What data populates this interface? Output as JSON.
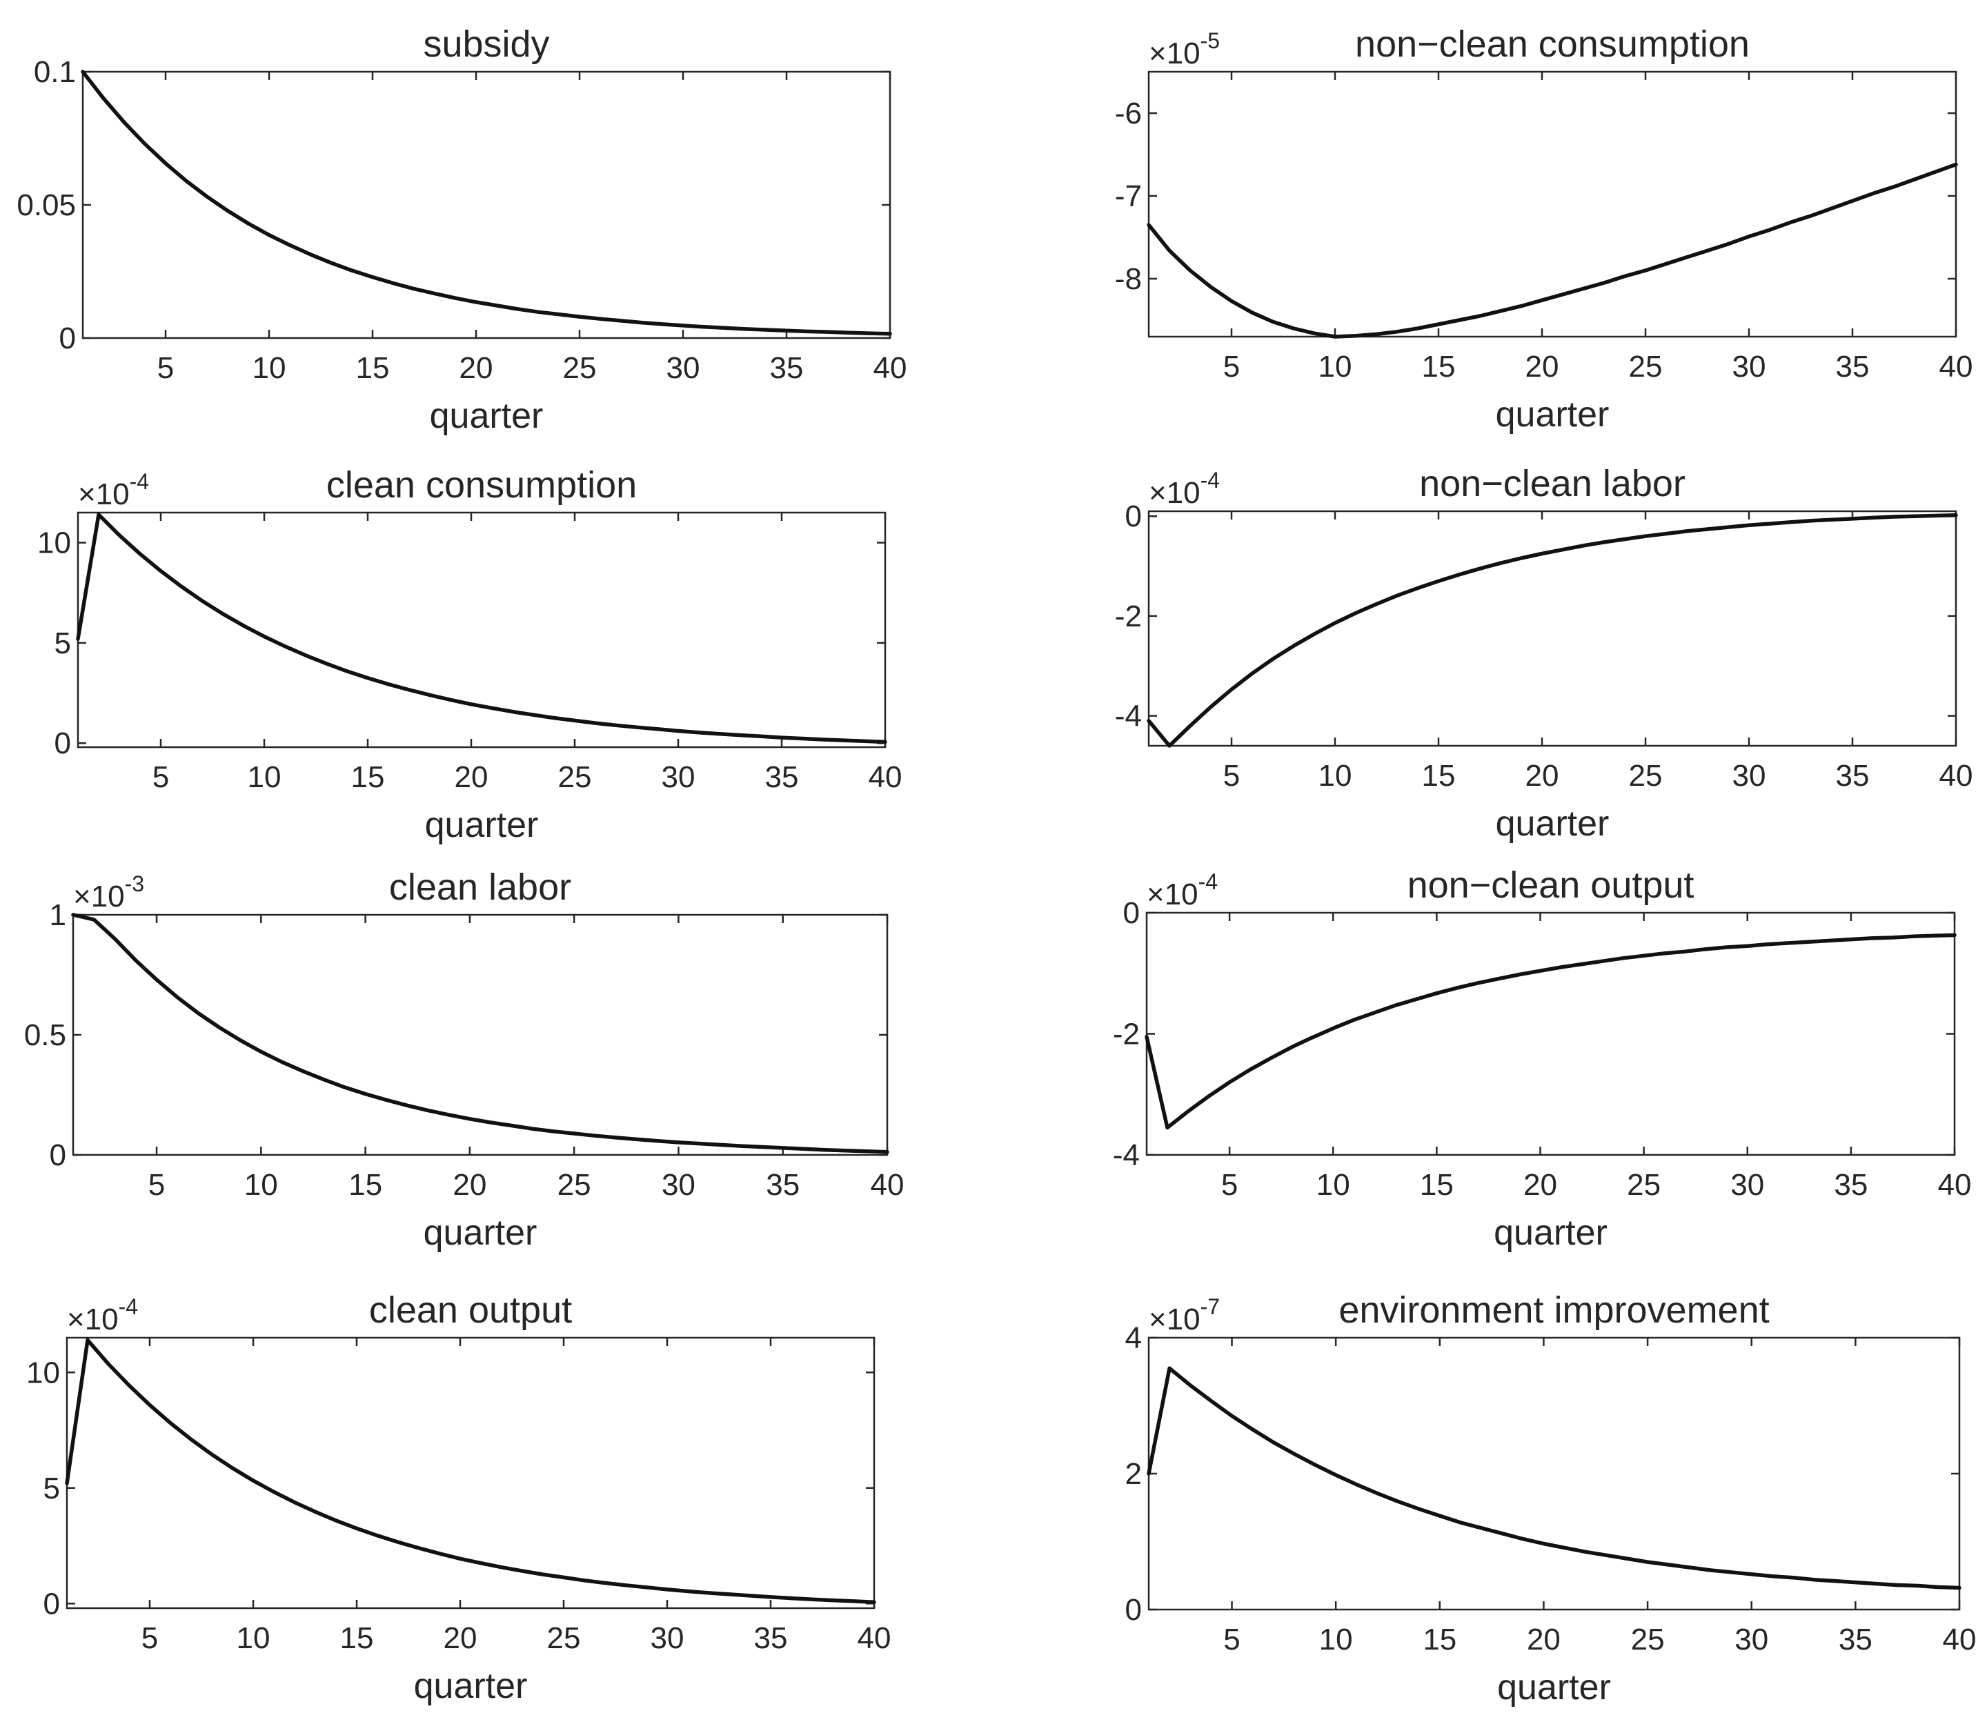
{
  "figure": {
    "background": "#ffffff",
    "line_color": "#111111"
  },
  "chart_data": [
    {
      "type": "line",
      "title": "subsidy",
      "xlabel": "quarter",
      "ylabel": "",
      "multiplier": "",
      "xlim": [
        1,
        40
      ],
      "ylim": [
        0,
        0.1
      ],
      "xticks": [
        5,
        10,
        15,
        20,
        25,
        30,
        35,
        40
      ],
      "yticks": [
        0,
        0.05,
        0.1
      ],
      "ytick_labels": [
        "0",
        "0.05",
        "0.1"
      ],
      "x": [
        1,
        2,
        3,
        4,
        5,
        6,
        7,
        8,
        9,
        10,
        11,
        12,
        13,
        14,
        15,
        16,
        17,
        18,
        19,
        20,
        21,
        22,
        23,
        24,
        25,
        26,
        27,
        28,
        29,
        30,
        31,
        32,
        33,
        34,
        35,
        36,
        37,
        38,
        39,
        40
      ],
      "values": [
        0.1,
        0.09,
        0.081,
        0.0729,
        0.0656,
        0.059,
        0.0531,
        0.0478,
        0.043,
        0.0387,
        0.0349,
        0.0314,
        0.0282,
        0.0254,
        0.0229,
        0.0206,
        0.0185,
        0.0167,
        0.015,
        0.0135,
        0.0122,
        0.0109,
        0.0098,
        0.0089,
        0.008,
        0.0072,
        0.0065,
        0.0058,
        0.0052,
        0.0047,
        0.0042,
        0.0038,
        0.0034,
        0.0031,
        0.0028,
        0.0025,
        0.0023,
        0.002,
        0.0018,
        0.0016
      ]
    },
    {
      "type": "line",
      "title": "clean consumption",
      "xlabel": "quarter",
      "ylabel": "",
      "multiplier": "×10",
      "exponent": "-4",
      "xlim": [
        1,
        40
      ],
      "ylim": [
        -0.2,
        11.5
      ],
      "xticks": [
        5,
        10,
        15,
        20,
        25,
        30,
        35,
        40
      ],
      "yticks": [
        0,
        5,
        10
      ],
      "ytick_labels": [
        "0",
        "5",
        "10"
      ],
      "x": [
        1,
        2,
        3,
        4,
        5,
        6,
        7,
        8,
        9,
        10,
        11,
        12,
        13,
        14,
        15,
        16,
        17,
        18,
        19,
        20,
        21,
        22,
        23,
        24,
        25,
        26,
        27,
        28,
        29,
        30,
        31,
        32,
        33,
        34,
        35,
        36,
        37,
        38,
        39,
        40
      ],
      "values": [
        5.2,
        11.4,
        10.37,
        9.44,
        8.59,
        7.81,
        7.1,
        6.45,
        5.86,
        5.32,
        4.83,
        4.38,
        3.97,
        3.59,
        3.25,
        2.94,
        2.66,
        2.4,
        2.16,
        1.94,
        1.75,
        1.57,
        1.41,
        1.26,
        1.13,
        1.0,
        0.89,
        0.79,
        0.7,
        0.61,
        0.53,
        0.46,
        0.4,
        0.34,
        0.28,
        0.23,
        0.18,
        0.14,
        0.1,
        0.06
      ]
    },
    {
      "type": "line",
      "title": "clean labor",
      "xlabel": "quarter",
      "ylabel": "",
      "multiplier": "×10",
      "exponent": "-3",
      "xlim": [
        1,
        40
      ],
      "ylim": [
        0,
        1
      ],
      "xticks": [
        5,
        10,
        15,
        20,
        25,
        30,
        35,
        40
      ],
      "yticks": [
        0,
        0.5,
        1
      ],
      "ytick_labels": [
        "0",
        "0.5",
        "1"
      ],
      "x": [
        1,
        2,
        3,
        4,
        5,
        6,
        7,
        8,
        9,
        10,
        11,
        12,
        13,
        14,
        15,
        16,
        17,
        18,
        19,
        20,
        21,
        22,
        23,
        24,
        25,
        26,
        27,
        28,
        29,
        30,
        31,
        32,
        33,
        34,
        35,
        36,
        37,
        38,
        39,
        40
      ],
      "values": [
        1.0,
        0.98,
        0.9,
        0.81,
        0.73,
        0.656,
        0.59,
        0.531,
        0.478,
        0.43,
        0.387,
        0.349,
        0.314,
        0.282,
        0.254,
        0.229,
        0.206,
        0.185,
        0.167,
        0.15,
        0.135,
        0.122,
        0.109,
        0.098,
        0.089,
        0.08,
        0.072,
        0.065,
        0.058,
        0.052,
        0.047,
        0.042,
        0.037,
        0.033,
        0.029,
        0.025,
        0.021,
        0.018,
        0.015,
        0.012
      ]
    },
    {
      "type": "line",
      "title": "clean output",
      "xlabel": "quarter",
      "ylabel": "",
      "multiplier": "×10",
      "exponent": "-4",
      "xlim": [
        1,
        40
      ],
      "ylim": [
        -0.2,
        11.5
      ],
      "xticks": [
        5,
        10,
        15,
        20,
        25,
        30,
        35,
        40
      ],
      "yticks": [
        0,
        5,
        10
      ],
      "ytick_labels": [
        "0",
        "5",
        "10"
      ],
      "x": [
        1,
        2,
        3,
        4,
        5,
        6,
        7,
        8,
        9,
        10,
        11,
        12,
        13,
        14,
        15,
        16,
        17,
        18,
        19,
        20,
        21,
        22,
        23,
        24,
        25,
        26,
        27,
        28,
        29,
        30,
        31,
        32,
        33,
        34,
        35,
        36,
        37,
        38,
        39,
        40
      ],
      "values": [
        5.2,
        11.4,
        10.37,
        9.44,
        8.59,
        7.81,
        7.1,
        6.45,
        5.86,
        5.32,
        4.83,
        4.38,
        3.97,
        3.59,
        3.25,
        2.94,
        2.66,
        2.4,
        2.16,
        1.94,
        1.75,
        1.57,
        1.41,
        1.26,
        1.13,
        1.0,
        0.89,
        0.79,
        0.7,
        0.61,
        0.53,
        0.46,
        0.4,
        0.34,
        0.28,
        0.23,
        0.18,
        0.14,
        0.1,
        0.06
      ]
    },
    {
      "type": "line",
      "title": "non−clean consumption",
      "xlabel": "quarter",
      "ylabel": "",
      "multiplier": "×10",
      "exponent": "-5",
      "xlim": [
        1,
        40
      ],
      "ylim": [
        -8.7,
        -5.5
      ],
      "xticks": [
        5,
        10,
        15,
        20,
        25,
        30,
        35,
        40
      ],
      "yticks": [
        -8,
        -7,
        -6
      ],
      "ytick_labels": [
        "-8",
        "-7",
        "-6"
      ],
      "x": [
        1,
        2,
        3,
        4,
        5,
        6,
        7,
        8,
        9,
        10,
        11,
        12,
        13,
        14,
        15,
        16,
        17,
        18,
        19,
        20,
        21,
        22,
        23,
        24,
        25,
        26,
        27,
        28,
        29,
        30,
        31,
        32,
        33,
        34,
        35,
        36,
        37,
        38,
        39,
        40
      ],
      "values": [
        -7.35,
        -7.66,
        -7.9,
        -8.1,
        -8.27,
        -8.41,
        -8.52,
        -8.6,
        -8.66,
        -8.7,
        -8.69,
        -8.67,
        -8.64,
        -8.6,
        -8.55,
        -8.5,
        -8.45,
        -8.39,
        -8.33,
        -8.26,
        -8.19,
        -8.12,
        -8.05,
        -7.97,
        -7.9,
        -7.82,
        -7.74,
        -7.66,
        -7.58,
        -7.49,
        -7.41,
        -7.32,
        -7.24,
        -7.15,
        -7.06,
        -6.97,
        -6.89,
        -6.8,
        -6.71,
        -6.62
      ]
    },
    {
      "type": "line",
      "title": "non−clean labor",
      "xlabel": "quarter",
      "ylabel": "",
      "multiplier": "×10",
      "exponent": "-4",
      "xlim": [
        1,
        40
      ],
      "ylim": [
        -4.6,
        0.1
      ],
      "xticks": [
        5,
        10,
        15,
        20,
        25,
        30,
        35,
        40
      ],
      "yticks": [
        -4,
        -2,
        0
      ],
      "ytick_labels": [
        "-4",
        "-2",
        "0"
      ],
      "x": [
        1,
        2,
        3,
        4,
        5,
        6,
        7,
        8,
        9,
        10,
        11,
        12,
        13,
        14,
        15,
        16,
        17,
        18,
        19,
        20,
        21,
        22,
        23,
        24,
        25,
        26,
        27,
        28,
        29,
        30,
        31,
        32,
        33,
        34,
        35,
        36,
        37,
        38,
        39,
        40
      ],
      "values": [
        -4.1,
        -4.6,
        -4.2,
        -3.82,
        -3.47,
        -3.15,
        -2.86,
        -2.6,
        -2.36,
        -2.14,
        -1.94,
        -1.76,
        -1.59,
        -1.44,
        -1.3,
        -1.17,
        -1.05,
        -0.94,
        -0.84,
        -0.75,
        -0.67,
        -0.59,
        -0.52,
        -0.46,
        -0.4,
        -0.35,
        -0.3,
        -0.26,
        -0.22,
        -0.18,
        -0.15,
        -0.12,
        -0.09,
        -0.07,
        -0.05,
        -0.03,
        -0.01,
        0.0,
        0.01,
        0.02
      ]
    },
    {
      "type": "line",
      "title": "non−clean output",
      "xlabel": "quarter",
      "ylabel": "",
      "multiplier": "×10",
      "exponent": "-4",
      "xlim": [
        1,
        40
      ],
      "ylim": [
        -4,
        0
      ],
      "xticks": [
        5,
        10,
        15,
        20,
        25,
        30,
        35,
        40
      ],
      "yticks": [
        -4,
        -2,
        0
      ],
      "ytick_labels": [
        "-4",
        "-2",
        "0"
      ],
      "x": [
        1,
        2,
        3,
        4,
        5,
        6,
        7,
        8,
        9,
        10,
        11,
        12,
        13,
        14,
        15,
        16,
        17,
        18,
        19,
        20,
        21,
        22,
        23,
        24,
        25,
        26,
        27,
        28,
        29,
        30,
        31,
        32,
        33,
        34,
        35,
        36,
        37,
        38,
        39,
        40
      ],
      "values": [
        -2.05,
        -3.55,
        -3.28,
        -3.03,
        -2.8,
        -2.59,
        -2.4,
        -2.22,
        -2.06,
        -1.91,
        -1.77,
        -1.65,
        -1.53,
        -1.43,
        -1.33,
        -1.24,
        -1.16,
        -1.09,
        -1.02,
        -0.96,
        -0.9,
        -0.85,
        -0.8,
        -0.75,
        -0.71,
        -0.67,
        -0.64,
        -0.6,
        -0.57,
        -0.55,
        -0.52,
        -0.5,
        -0.48,
        -0.46,
        -0.44,
        -0.42,
        -0.41,
        -0.39,
        -0.38,
        -0.37
      ]
    },
    {
      "type": "line",
      "title": "environment improvement",
      "xlabel": "quarter",
      "ylabel": "",
      "multiplier": "×10",
      "exponent": "-7",
      "xlim": [
        1,
        40
      ],
      "ylim": [
        0,
        4
      ],
      "xticks": [
        5,
        10,
        15,
        20,
        25,
        30,
        35,
        40
      ],
      "yticks": [
        0,
        2,
        4
      ],
      "ytick_labels": [
        "0",
        "2",
        "4"
      ],
      "x": [
        1,
        2,
        3,
        4,
        5,
        6,
        7,
        8,
        9,
        10,
        11,
        12,
        13,
        14,
        15,
        16,
        17,
        18,
        19,
        20,
        21,
        22,
        23,
        24,
        25,
        26,
        27,
        28,
        29,
        30,
        31,
        32,
        33,
        34,
        35,
        36,
        37,
        38,
        39,
        40
      ],
      "values": [
        2.0,
        3.55,
        3.3,
        3.07,
        2.85,
        2.65,
        2.46,
        2.29,
        2.13,
        1.98,
        1.84,
        1.71,
        1.59,
        1.48,
        1.38,
        1.28,
        1.2,
        1.12,
        1.04,
        0.97,
        0.91,
        0.85,
        0.8,
        0.75,
        0.7,
        0.66,
        0.62,
        0.58,
        0.55,
        0.52,
        0.49,
        0.47,
        0.44,
        0.42,
        0.4,
        0.38,
        0.36,
        0.35,
        0.33,
        0.32
      ]
    }
  ]
}
